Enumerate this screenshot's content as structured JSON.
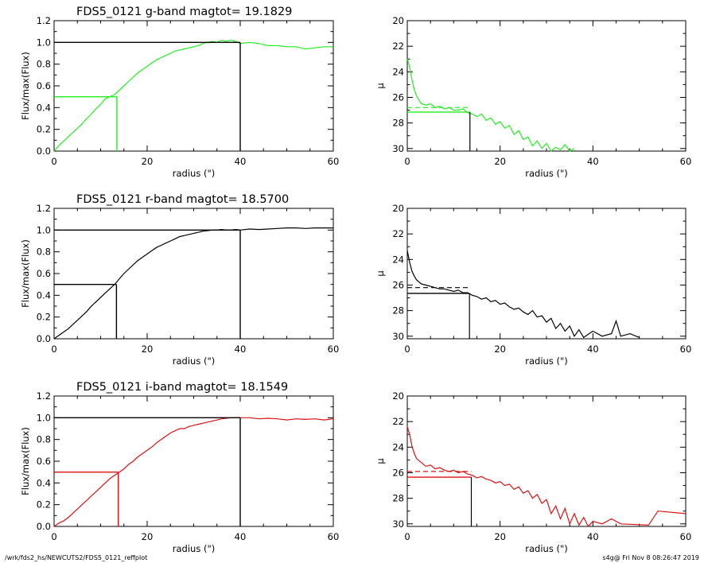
{
  "footer": {
    "left": "/wrk/fds2_hs/NEWCUTS2/FDS5_0121_reffplot",
    "right": "s4g@  Fri Nov  8 08:26:47 2019"
  },
  "chart_data": [
    {
      "type": "line",
      "band": "g",
      "color": "#22ee22",
      "title": "FDS5_0121 g-band  magtot=     19.1829",
      "xlabel": "radius (\")",
      "ylabel": "Flux/max(Flux)",
      "xlim": [
        0,
        60
      ],
      "ylim": [
        0,
        1.2
      ],
      "xticks": [
        "0",
        "20",
        "40",
        "60"
      ],
      "yticks": [
        "0.0",
        "0.2",
        "0.4",
        "0.6",
        "0.8",
        "1.0",
        "1.2"
      ],
      "x": [
        0,
        1,
        2,
        3,
        4,
        5,
        6,
        7,
        8,
        9,
        10,
        11,
        12,
        13,
        14,
        15,
        16,
        17,
        18,
        19,
        20,
        21,
        22,
        23,
        24,
        25,
        26,
        27,
        28,
        29,
        30,
        31,
        32,
        33,
        34,
        35,
        36,
        37,
        38,
        39,
        40,
        42,
        44,
        46,
        48,
        50,
        52,
        54,
        56,
        58,
        60
      ],
      "y": [
        0.0,
        0.05,
        0.09,
        0.13,
        0.17,
        0.21,
        0.25,
        0.3,
        0.34,
        0.39,
        0.43,
        0.48,
        0.5,
        0.52,
        0.56,
        0.6,
        0.64,
        0.68,
        0.72,
        0.75,
        0.78,
        0.81,
        0.84,
        0.86,
        0.88,
        0.9,
        0.92,
        0.93,
        0.94,
        0.95,
        0.96,
        0.97,
        0.99,
        1.0,
        1.01,
        1.0,
        1.02,
        1.01,
        1.02,
        1.01,
        0.99,
        1.0,
        0.99,
        0.97,
        0.97,
        0.96,
        0.96,
        0.94,
        0.95,
        0.96,
        0.96
      ],
      "reff": 13.5,
      "half_flux": 0.5,
      "r_max": 40,
      "norm_flux": 1.0
    },
    {
      "type": "line",
      "band": "g",
      "color": "#22ee22",
      "xlabel": "radius (\")",
      "ylabel": "μ",
      "xlim": [
        0,
        60
      ],
      "ylim": [
        30.2,
        20
      ],
      "xticks": [
        "0",
        "20",
        "40",
        "60"
      ],
      "yticks": [
        "20",
        "22",
        "24",
        "26",
        "28",
        "30"
      ],
      "x": [
        0,
        0.5,
        1,
        1.5,
        2,
        2.5,
        3,
        4,
        5,
        6,
        7,
        8,
        9,
        10,
        11,
        12,
        13,
        14,
        15,
        16,
        17,
        18,
        19,
        20,
        21,
        22,
        23,
        24,
        25,
        26,
        27,
        28,
        29,
        30,
        31,
        32,
        33,
        34,
        35,
        36
      ],
      "y": [
        23.0,
        23.6,
        24.6,
        25.4,
        25.9,
        26.2,
        26.5,
        26.6,
        26.5,
        26.8,
        26.7,
        26.9,
        26.8,
        27.0,
        27.0,
        26.9,
        27.2,
        27.3,
        27.5,
        27.3,
        27.8,
        27.6,
        28.1,
        27.9,
        28.4,
        28.2,
        28.9,
        28.6,
        29.3,
        29.1,
        29.8,
        29.4,
        30.0,
        29.6,
        30.2,
        29.9,
        30.1,
        29.7,
        30.2,
        30.0
      ],
      "mu_eff": 27.15,
      "mu_mean": 26.8,
      "reff": 13.5
    },
    {
      "type": "line",
      "band": "r",
      "color": "#000000",
      "title": "FDS5_0121 r-band  magtot=     18.5700",
      "xlabel": "radius (\")",
      "ylabel": "Flux/max(Flux)",
      "xlim": [
        0,
        60
      ],
      "ylim": [
        0,
        1.2
      ],
      "xticks": [
        "0",
        "20",
        "40",
        "60"
      ],
      "yticks": [
        "0.0",
        "0.2",
        "0.4",
        "0.6",
        "0.8",
        "1.0",
        "1.2"
      ],
      "x": [
        0,
        1,
        2,
        3,
        4,
        5,
        6,
        7,
        8,
        9,
        10,
        11,
        12,
        13,
        14,
        15,
        16,
        17,
        18,
        19,
        20,
        21,
        22,
        23,
        24,
        25,
        26,
        27,
        28,
        29,
        30,
        31,
        32,
        33,
        34,
        35,
        36,
        37,
        38,
        39,
        40,
        42,
        44,
        46,
        48,
        50,
        52,
        54,
        56,
        58,
        60
      ],
      "y": [
        0.0,
        0.03,
        0.06,
        0.09,
        0.13,
        0.17,
        0.21,
        0.25,
        0.3,
        0.34,
        0.38,
        0.42,
        0.46,
        0.5,
        0.55,
        0.6,
        0.64,
        0.68,
        0.72,
        0.75,
        0.78,
        0.81,
        0.84,
        0.86,
        0.88,
        0.9,
        0.92,
        0.94,
        0.95,
        0.96,
        0.97,
        0.98,
        0.99,
        0.995,
        1.0,
        1.0,
        1.005,
        1.0,
        1.0,
        1.005,
        1.0,
        1.01,
        1.005,
        1.01,
        1.015,
        1.02,
        1.02,
        1.015,
        1.02,
        1.02,
        1.02
      ],
      "reff": 13.4,
      "half_flux": 0.5,
      "r_max": 40,
      "norm_flux": 1.0
    },
    {
      "type": "line",
      "band": "r",
      "color": "#000000",
      "xlabel": "radius (\")",
      "ylabel": "μ",
      "xlim": [
        0,
        60
      ],
      "ylim": [
        30.2,
        20
      ],
      "xticks": [
        "0",
        "20",
        "40",
        "60"
      ],
      "yticks": [
        "20",
        "22",
        "24",
        "26",
        "28",
        "30"
      ],
      "x": [
        0,
        0.5,
        1,
        1.5,
        2,
        3,
        4,
        5,
        6,
        7,
        8,
        9,
        10,
        11,
        12,
        13,
        14,
        15,
        16,
        17,
        18,
        19,
        20,
        21,
        22,
        23,
        24,
        25,
        26,
        27,
        28,
        29,
        30,
        31,
        32,
        33,
        34,
        35,
        36,
        37,
        38,
        40,
        42,
        44,
        45,
        46,
        48,
        50
      ],
      "y": [
        23.3,
        24.2,
        24.9,
        25.3,
        25.6,
        25.9,
        26.0,
        26.1,
        26.2,
        26.3,
        26.3,
        26.4,
        26.5,
        26.4,
        26.6,
        26.6,
        26.8,
        26.9,
        27.1,
        27.0,
        27.3,
        27.2,
        27.5,
        27.4,
        27.7,
        27.9,
        27.8,
        28.1,
        28.3,
        28.0,
        28.5,
        28.4,
        28.9,
        28.6,
        29.4,
        29.0,
        29.6,
        29.2,
        30.0,
        29.5,
        30.1,
        29.6,
        30.0,
        29.8,
        28.8,
        30.0,
        29.8,
        30.1
      ],
      "mu_eff": 26.65,
      "mu_mean": 26.2,
      "reff": 13.4
    },
    {
      "type": "line",
      "band": "i",
      "color": "#dd1111",
      "title": "FDS5_0121 i-band  magtot=     18.1549",
      "xlabel": "radius (\")",
      "ylabel": "Flux/max(Flux)",
      "xlim": [
        0,
        60
      ],
      "ylim": [
        0,
        1.2
      ],
      "xticks": [
        "0",
        "20",
        "40",
        "60"
      ],
      "yticks": [
        "0.0",
        "0.2",
        "0.4",
        "0.6",
        "0.8",
        "1.0",
        "1.2"
      ],
      "x": [
        0,
        1,
        2,
        3,
        4,
        5,
        6,
        7,
        8,
        9,
        10,
        11,
        12,
        13,
        14,
        15,
        16,
        17,
        18,
        19,
        20,
        21,
        22,
        23,
        24,
        25,
        26,
        27,
        28,
        29,
        30,
        31,
        32,
        33,
        34,
        35,
        36,
        37,
        38,
        39,
        40,
        42,
        44,
        46,
        48,
        50,
        52,
        54,
        56,
        58,
        60
      ],
      "y": [
        0.0,
        0.03,
        0.05,
        0.08,
        0.12,
        0.16,
        0.2,
        0.24,
        0.28,
        0.32,
        0.36,
        0.4,
        0.44,
        0.47,
        0.5,
        0.53,
        0.57,
        0.6,
        0.64,
        0.67,
        0.7,
        0.73,
        0.77,
        0.8,
        0.83,
        0.86,
        0.88,
        0.9,
        0.9,
        0.92,
        0.93,
        0.94,
        0.95,
        0.96,
        0.97,
        0.98,
        0.99,
        0.995,
        1.0,
        1.0,
        1.0,
        1.0,
        0.99,
        0.995,
        0.99,
        0.98,
        0.99,
        0.985,
        0.99,
        0.98,
        0.99
      ],
      "reff": 13.8,
      "half_flux": 0.5,
      "r_max": 40,
      "norm_flux": 1.0
    },
    {
      "type": "line",
      "band": "i",
      "color": "#dd1111",
      "xlabel": "radius (\")",
      "ylabel": "μ",
      "xlim": [
        0,
        60
      ],
      "ylim": [
        30.2,
        20
      ],
      "xticks": [
        "0",
        "20",
        "40",
        "60"
      ],
      "yticks": [
        "20",
        "22",
        "24",
        "26",
        "28",
        "30"
      ],
      "x": [
        0,
        0.5,
        1,
        1.5,
        2,
        3,
        4,
        5,
        6,
        7,
        8,
        9,
        10,
        11,
        12,
        13,
        14,
        15,
        16,
        17,
        18,
        19,
        20,
        21,
        22,
        23,
        24,
        25,
        26,
        27,
        28,
        29,
        30,
        31,
        32,
        33,
        34,
        35,
        36,
        37,
        38,
        39,
        40,
        42,
        44,
        46,
        52,
        54,
        60
      ],
      "y": [
        22.4,
        23.0,
        23.9,
        24.5,
        24.9,
        25.2,
        25.5,
        25.4,
        25.7,
        25.6,
        25.8,
        25.9,
        25.8,
        26.0,
        25.9,
        26.1,
        26.2,
        26.4,
        26.3,
        26.5,
        26.6,
        26.8,
        26.7,
        27.0,
        26.9,
        27.3,
        27.1,
        27.6,
        27.4,
        28.0,
        27.7,
        28.4,
        28.1,
        29.2,
        28.6,
        29.6,
        28.8,
        30.0,
        29.2,
        30.1,
        29.5,
        30.2,
        29.8,
        30.0,
        29.6,
        30.0,
        30.1,
        29.0,
        29.2
      ],
      "mu_eff": 26.35,
      "mu_mean": 25.9,
      "reff": 13.8
    }
  ]
}
